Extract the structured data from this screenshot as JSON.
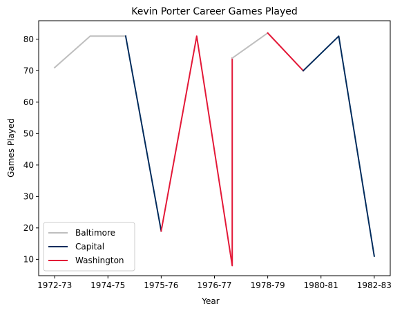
{
  "chart_data": {
    "type": "line",
    "title": "Kevin Porter  Career Games Played",
    "xlabel": "Year",
    "ylabel": "Games Played",
    "xlim": [
      -0.45,
      9.45
    ],
    "ylim": [
      4.8,
      85.9
    ],
    "x_ticks": [
      {
        "pos": 0,
        "label": "1972-73"
      },
      {
        "pos": 1.5,
        "label": "1974-75"
      },
      {
        "pos": 3,
        "label": "1975-76"
      },
      {
        "pos": 4.5,
        "label": "1976-77"
      },
      {
        "pos": 6,
        "label": "1978-79"
      },
      {
        "pos": 7.5,
        "label": "1980-81"
      },
      {
        "pos": 9,
        "label": "1982-83"
      }
    ],
    "y_ticks": [
      10,
      20,
      30,
      40,
      50,
      60,
      70,
      80
    ],
    "grid": false,
    "legend_position": "lower-left",
    "series": [
      {
        "name": "Baltimore",
        "color": "#bebebe",
        "points": [
          [
            0,
            71
          ],
          [
            1,
            81
          ],
          [
            2,
            81
          ]
        ]
      },
      {
        "name": "Capital",
        "color": "#002b5c",
        "points": [
          [
            2,
            81
          ],
          [
            3,
            19
          ]
        ]
      },
      {
        "name": "Washington",
        "color": "#e31837",
        "points": [
          [
            3,
            19
          ],
          [
            4,
            81
          ],
          [
            5,
            8
          ],
          [
            5,
            74
          ]
        ]
      },
      {
        "name": "Baltimore",
        "color": "#bebebe",
        "legend": false,
        "points": [
          [
            5,
            74
          ],
          [
            6,
            82
          ]
        ]
      },
      {
        "name": "Washington",
        "color": "#e31837",
        "legend": false,
        "points": [
          [
            6,
            82
          ],
          [
            7,
            70
          ]
        ]
      },
      {
        "name": "Capital",
        "color": "#002b5c",
        "legend": false,
        "points": [
          [
            7,
            70
          ],
          [
            8,
            81
          ],
          [
            9,
            11
          ]
        ]
      }
    ],
    "legend": [
      {
        "name": "Baltimore",
        "color": "#bebebe"
      },
      {
        "name": "Capital",
        "color": "#002b5c"
      },
      {
        "name": "Washington",
        "color": "#e31837"
      }
    ]
  }
}
